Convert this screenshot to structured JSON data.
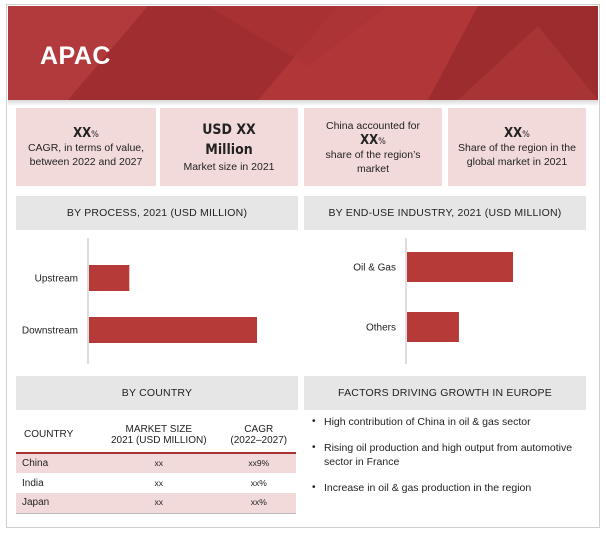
{
  "title": "APAC",
  "kpis": [
    {
      "big": "XX",
      "suffix": "%",
      "text": "CAGR, in terms of value, between 2022 and 2027"
    },
    {
      "big": "USD XX Million",
      "text": "Market size in 2021"
    },
    {
      "pre": "China accounted for",
      "big": "XX",
      "suffix": "%",
      "text": "share of the region’s market"
    },
    {
      "big": "XX",
      "suffix": "%",
      "text": "Share of the region in the global market in 2021"
    }
  ],
  "sections": {
    "process": "BY PROCESS, 2021 (USD MILLION)",
    "enduse": "BY END-USE INDUSTRY, 2021 (USD MILLION)",
    "country": "BY COUNTRY",
    "factors": "FACTORS DRIVING GROWTH IN EUROPE"
  },
  "chart_data": [
    {
      "type": "bar",
      "orientation": "horizontal",
      "title": "BY PROCESS, 2021 (USD MILLION)",
      "categories": [
        "Upstream",
        "Downstream"
      ],
      "values": [
        24,
        100
      ],
      "grid": false,
      "color": "#b63a37"
    },
    {
      "type": "bar",
      "orientation": "horizontal",
      "title": "BY END-USE INDUSTRY, 2021 (USD MILLION)",
      "categories": [
        "Oil & Gas",
        "Others"
      ],
      "values": [
        100,
        49
      ],
      "grid": false,
      "color": "#b63a37"
    },
    {
      "type": "table",
      "title": "BY COUNTRY",
      "columns": [
        "COUNTRY",
        "MARKET SIZE 2021 (USD MILLION)",
        "CAGR (2022–2027)"
      ],
      "rows": [
        [
          "China",
          "xx",
          "xx9%"
        ],
        [
          "India",
          "xx",
          "xx%"
        ],
        [
          "Japan",
          "xx",
          "xx%"
        ]
      ]
    }
  ],
  "table": {
    "headers": {
      "country": "COUNTRY",
      "market_size_1": "MARKET SIZE",
      "market_size_2": "2021 (USD MILLION)",
      "cagr_1": "CAGR",
      "cagr_2": "(2022–2027)"
    },
    "rows": [
      {
        "country": "China",
        "size": "xx",
        "cagr": "xx9%"
      },
      {
        "country": "India",
        "size": "xx",
        "cagr": "xx%"
      },
      {
        "country": "Japan",
        "size": "xx",
        "cagr": "xx%"
      }
    ]
  },
  "factors": [
    "High contribution of China in oil & gas sector",
    "Rising oil production and high output from automotive sector in France",
    "Increase in oil & gas production in the region"
  ],
  "colors": {
    "brand_red": "#a83234",
    "bar_red": "#b63a37",
    "card_pink": "#f3dada",
    "header_grey": "#e6e6e6"
  }
}
